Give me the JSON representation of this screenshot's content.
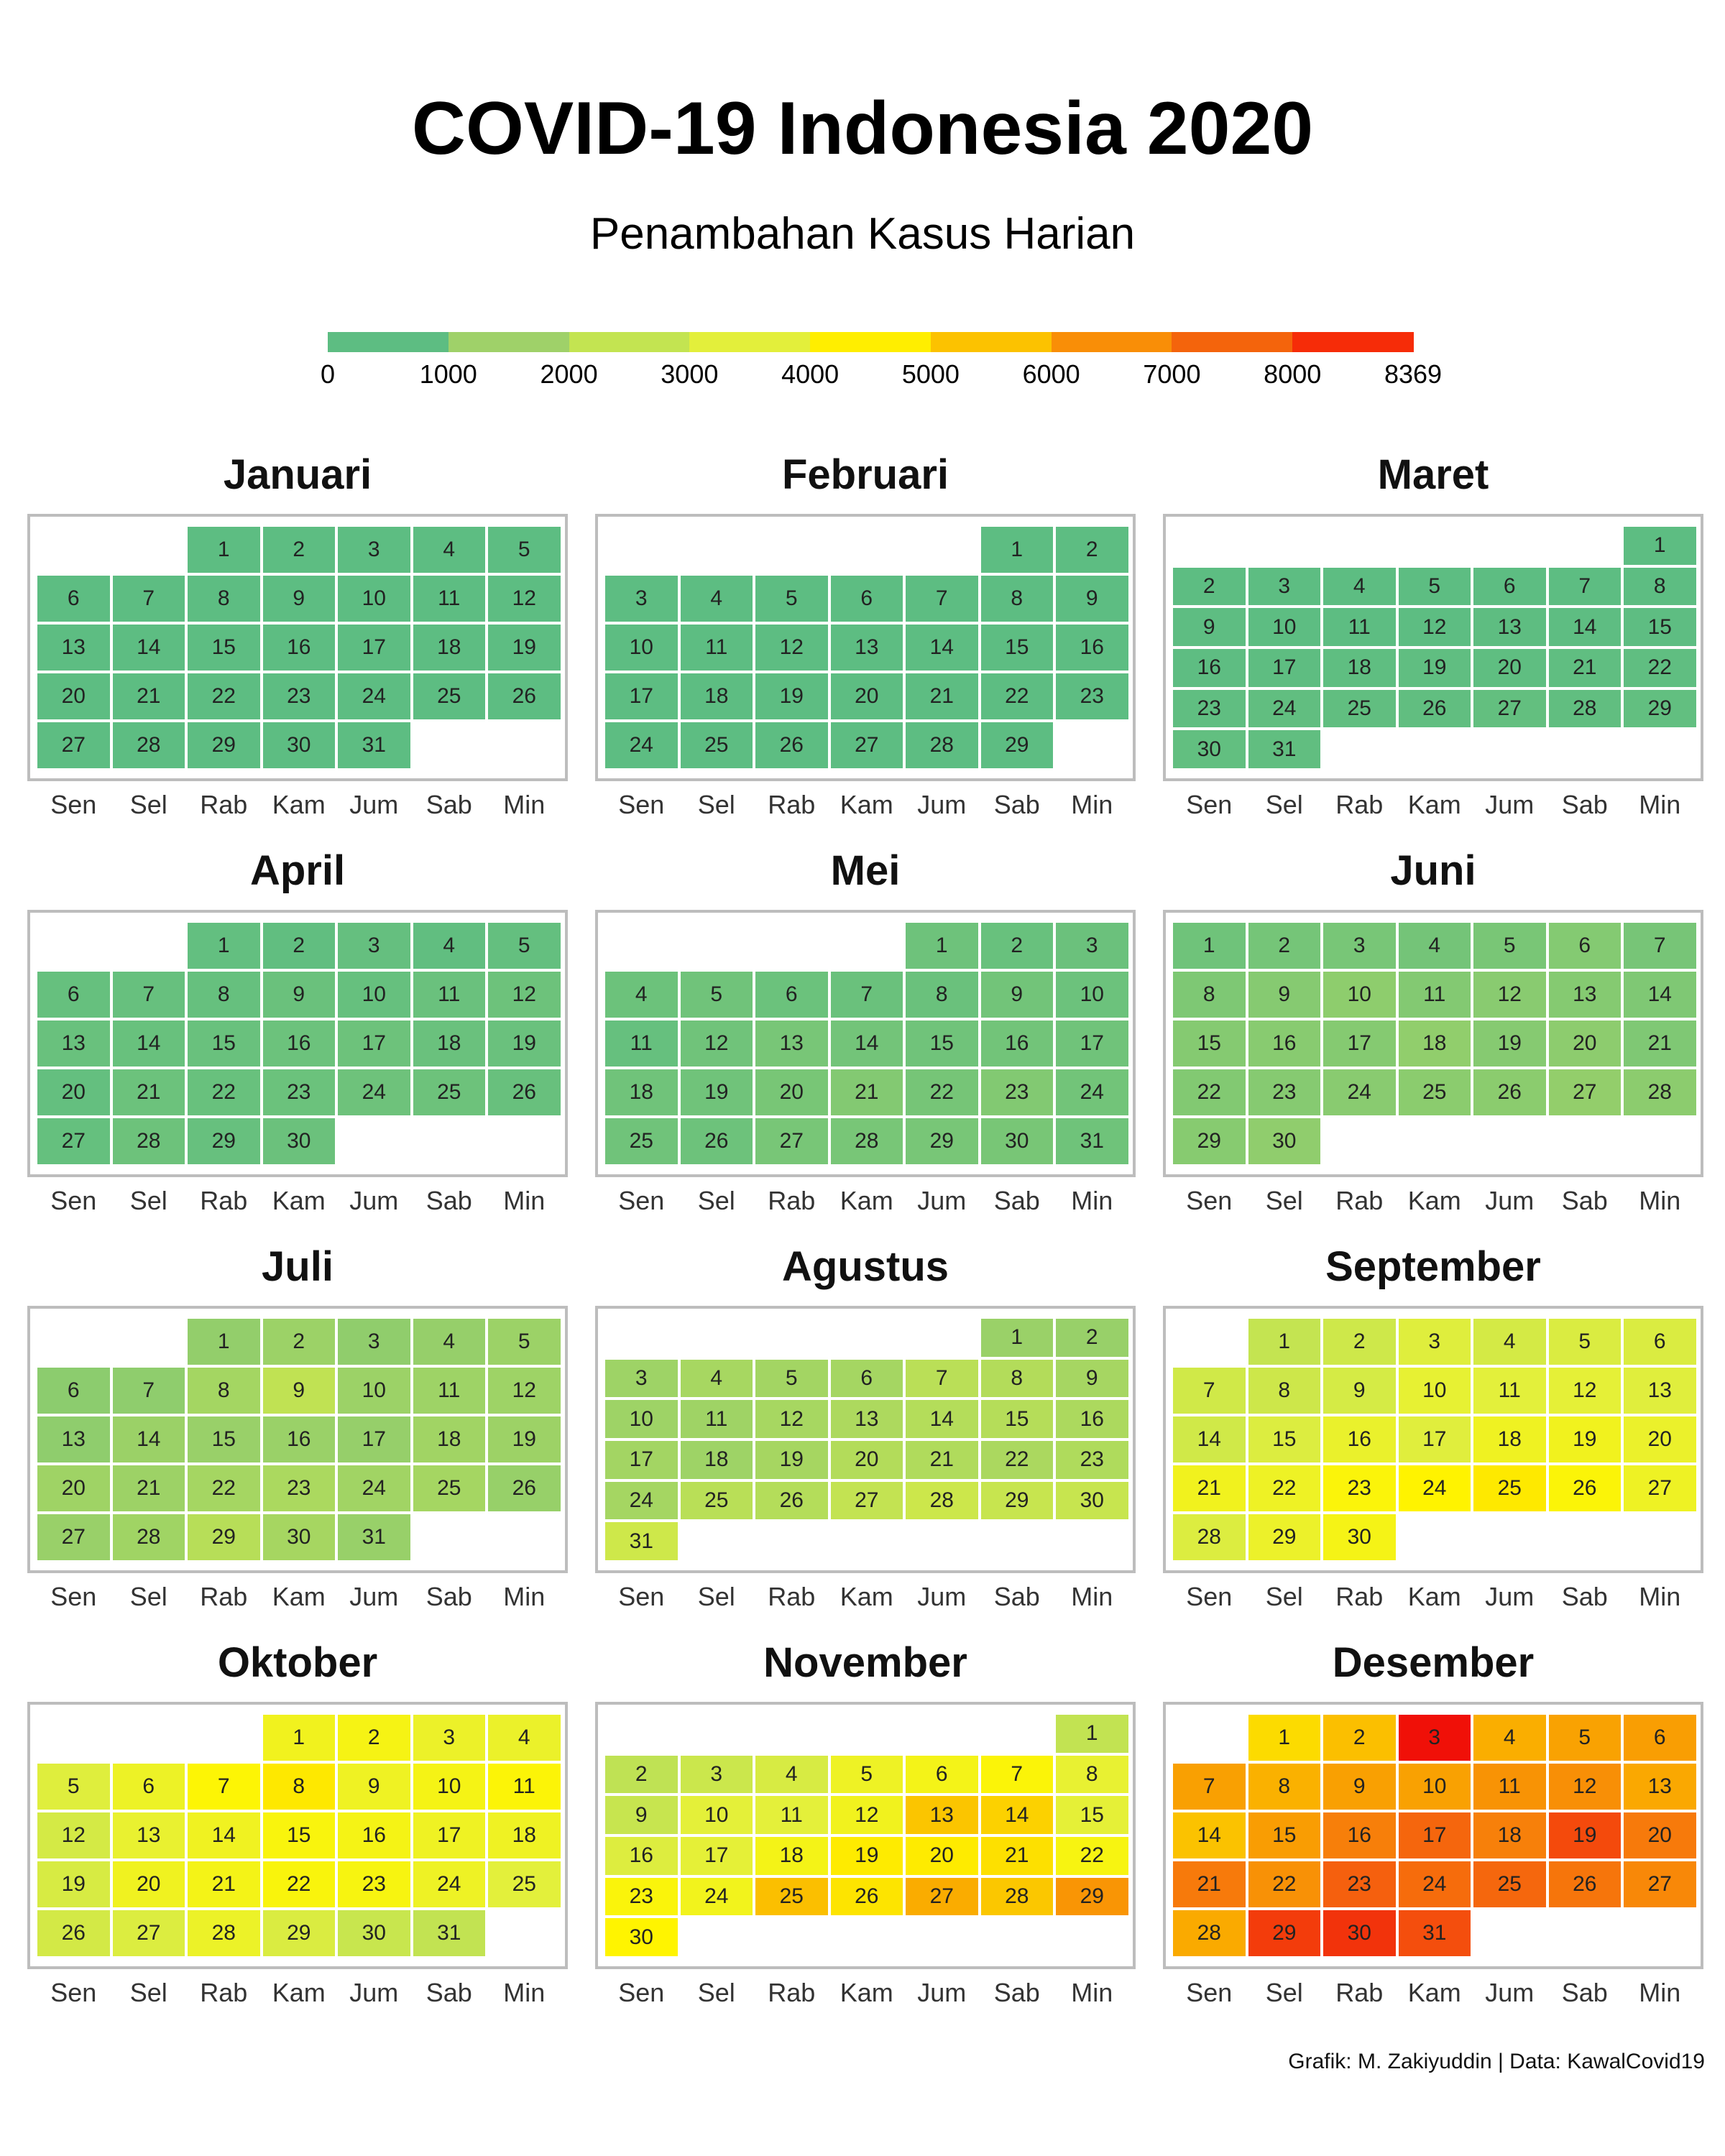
{
  "title": "COVID-19 Indonesia 2020",
  "subtitle": "Penambahan Kasus Harian",
  "credit": "Grafik: M. Zakiyuddin | Data: KawalCovid19",
  "legend": {
    "breaks": [
      "0",
      "1000",
      "2000",
      "3000",
      "4000",
      "5000",
      "6000",
      "7000",
      "8000",
      "8369"
    ],
    "colors": [
      "#5dbd82",
      "#9fd169",
      "#c3e451",
      "#e3ef3b",
      "#ffee00",
      "#fcc200",
      "#f98e07",
      "#f4640c",
      "#f62c08"
    ]
  },
  "weekday_labels": [
    "Sen",
    "Sel",
    "Rab",
    "Kam",
    "Jum",
    "Sab",
    "Min"
  ],
  "chart_data": {
    "type": "heatmap",
    "year": 2020,
    "scale": {
      "min": 0,
      "max": 8369
    },
    "months": [
      {
        "name": "Januari",
        "first_weekday": 2,
        "days": 31,
        "daily_cases": [
          0,
          0,
          0,
          0,
          0,
          0,
          0,
          0,
          0,
          0,
          0,
          0,
          0,
          0,
          0,
          0,
          0,
          0,
          0,
          0,
          0,
          0,
          0,
          0,
          0,
          0,
          0,
          0,
          0,
          0,
          0
        ]
      },
      {
        "name": "Februari",
        "first_weekday": 5,
        "days": 29,
        "daily_cases": [
          0,
          0,
          0,
          0,
          0,
          0,
          0,
          0,
          0,
          0,
          0,
          0,
          0,
          0,
          0,
          0,
          0,
          0,
          0,
          0,
          0,
          0,
          0,
          0,
          0,
          0,
          0,
          0,
          0
        ]
      },
      {
        "name": "Maret",
        "first_weekday": 6,
        "days": 31,
        "daily_cases": [
          0,
          2,
          0,
          0,
          0,
          2,
          2,
          2,
          13,
          8,
          7,
          7,
          35,
          27,
          21,
          17,
          38,
          55,
          82,
          60,
          81,
          64,
          65,
          106,
          105,
          103,
          153,
          109,
          130,
          129,
          114
        ]
      },
      {
        "name": "April",
        "first_weekday": 2,
        "days": 30,
        "daily_cases": [
          149,
          113,
          196,
          106,
          181,
          218,
          247,
          218,
          337,
          219,
          330,
          399,
          316,
          282,
          297,
          380,
          407,
          325,
          327,
          185,
          375,
          283,
          357,
          436,
          396,
          275,
          214,
          415,
          260,
          347
        ]
      },
      {
        "name": "Mei",
        "first_weekday": 4,
        "days": 31,
        "daily_cases": [
          433,
          292,
          349,
          395,
          484,
          367,
          338,
          336,
          533,
          387,
          233,
          484,
          689,
          568,
          490,
          529,
          489,
          496,
          486,
          693,
          973,
          634,
          949,
          526,
          479,
          415,
          686,
          687,
          678,
          700,
          467
        ]
      },
      {
        "name": "Juni",
        "first_weekday": 0,
        "days": 30,
        "daily_cases": [
          467,
          609,
          684,
          585,
          703,
          993,
          672,
          847,
          1043,
          1241,
          979,
          1111,
          1014,
          857,
          1017,
          1106,
          1031,
          1331,
          1041,
          1226,
          862,
          954,
          1051,
          1113,
          1178,
          1178,
          1385,
          1198,
          1082,
          1293
        ]
      },
      {
        "name": "Juli",
        "first_weekday": 2,
        "days": 31,
        "daily_cases": [
          1385,
          1624,
          1301,
          1447,
          1607,
          1209,
          1268,
          1853,
          2657,
          1611,
          1671,
          1681,
          1282,
          1591,
          1522,
          1574,
          1462,
          1752,
          1639,
          1693,
          1655,
          1882,
          2040,
          1761,
          1868,
          1492,
          1525,
          1748,
          2381,
          1904,
          1519
        ]
      },
      {
        "name": "Agustus",
        "first_weekday": 5,
        "days": 31,
        "daily_cases": [
          1560,
          1519,
          1679,
          1922,
          1815,
          1882,
          2473,
          2277,
          1893,
          1687,
          1693,
          1942,
          2098,
          2307,
          2345,
          2081,
          1821,
          1673,
          1902,
          2266,
          2197,
          2037,
          2173,
          1877,
          2447,
          2306,
          2719,
          3003,
          2858,
          2858,
          3075
        ]
      },
      {
        "name": "September",
        "first_weekday": 1,
        "days": 30,
        "daily_cases": [
          2775,
          3075,
          3622,
          3269,
          3444,
          3444,
          3141,
          3046,
          3307,
          3861,
          3737,
          3806,
          3636,
          3141,
          3507,
          3963,
          3635,
          4106,
          4168,
          3989,
          4176,
          4071,
          4465,
          4634,
          4823,
          4494,
          4087,
          3509,
          4002,
          4284
        ]
      },
      {
        "name": "Oktober",
        "first_weekday": 3,
        "days": 31,
        "daily_cases": [
          4174,
          4317,
          4007,
          3992,
          3622,
          4056,
          4538,
          4850,
          4094,
          4294,
          4497,
          3267,
          3906,
          4127,
          4411,
          4301,
          4105,
          4105,
          3373,
          4140,
          4267,
          4432,
          4369,
          4070,
          3732,
          3222,
          3520,
          4029,
          3445,
          2897,
          2696
        ]
      },
      {
        "name": "November",
        "first_weekday": 6,
        "days": 30,
        "daily_cases": [
          2696,
          2618,
          2973,
          3356,
          4065,
          4262,
          4486,
          3880,
          2853,
          3779,
          3770,
          4173,
          5444,
          5272,
          3807,
          3535,
          3807,
          4265,
          4798,
          4792,
          4998,
          4360,
          4442,
          4192,
          5534,
          4917,
          5828,
          5418,
          6267,
          4617
        ]
      },
      {
        "name": "Desember",
        "first_weekday": 1,
        "days": 31,
        "daily_cases": [
          5092,
          5533,
          8369,
          5803,
          6027,
          6089,
          6058,
          5754,
          6058,
          6033,
          6310,
          6388,
          5902,
          5489,
          6120,
          6725,
          7354,
          6689,
          7751,
          6848,
          6848,
          6347,
          7514,
          7199,
          7334,
          6982,
          6528,
          5854,
          7903,
          8002,
          7711
        ]
      }
    ]
  }
}
